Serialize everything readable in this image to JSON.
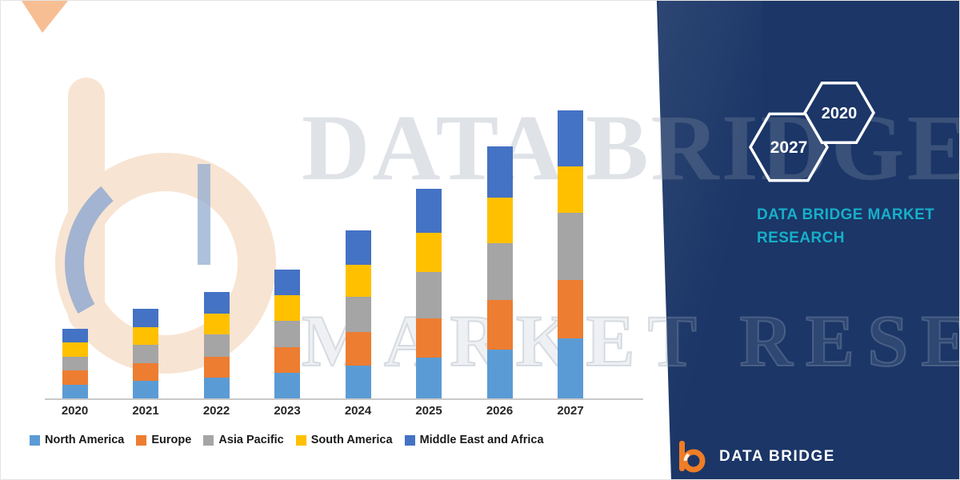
{
  "chart_data": {
    "type": "bar",
    "stacked": true,
    "title": "",
    "xlabel": "",
    "ylabel": "",
    "categories": [
      "2020",
      "2021",
      "2022",
      "2023",
      "2024",
      "2025",
      "2026",
      "2027"
    ],
    "series": [
      {
        "name": "North America",
        "color": "#5B9BD5",
        "values": [
          6,
          7.5,
          9,
          11,
          14,
          17.5,
          21,
          26
        ]
      },
      {
        "name": "Europe",
        "color": "#ED7D31",
        "values": [
          6,
          7.5,
          9,
          11,
          14.5,
          17,
          21.5,
          25
        ]
      },
      {
        "name": "Asia Pacific",
        "color": "#A5A5A5",
        "values": [
          6,
          8,
          9.5,
          11.5,
          15.5,
          20,
          24.5,
          29
        ]
      },
      {
        "name": "South America",
        "color": "#FFC000",
        "values": [
          6,
          7.5,
          9,
          11,
          13.5,
          17,
          19.5,
          20
        ]
      },
      {
        "name": "Middle East and Africa",
        "color": "#4472C4",
        "values": [
          6,
          8,
          9.5,
          11,
          15,
          19,
          22,
          24
        ]
      }
    ],
    "ylim": [
      0,
      130
    ],
    "grid": false,
    "legend_position": "bottom",
    "axis_visible": {
      "x": true,
      "y": false
    }
  },
  "watermark": {
    "line1": "DATA BRIDGE",
    "line2": "MARKET RESEARCH"
  },
  "side_panel": {
    "bg_color": "#1B3667",
    "hexagon_back_label": "2027",
    "hexagon_front_label": "2020",
    "brand_text_line1": "DATA BRIDGE MARKET",
    "brand_text_line2": "RESEARCH",
    "brand_color": "#17AFC9"
  },
  "footer": {
    "brand_name": "DATA BRIDGE"
  }
}
